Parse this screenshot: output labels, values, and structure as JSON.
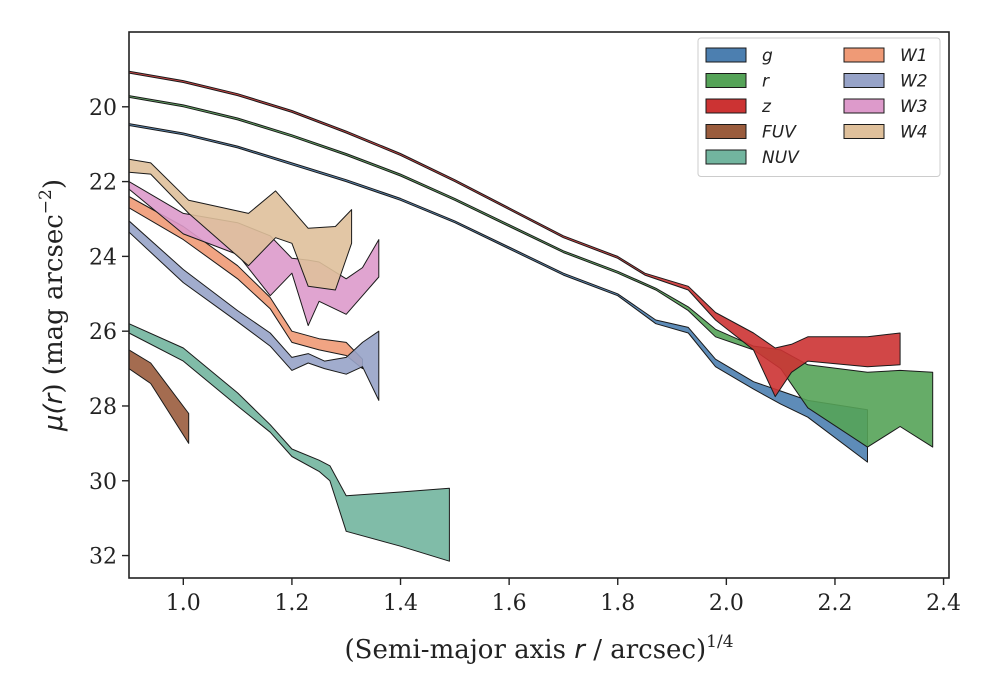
{
  "chart_data": {
    "type": "area",
    "xlabel": "(Semi-major axis r / arcsec)^{1/4}",
    "xlabel_parts": {
      "prefix": "(Semi-major axis ",
      "var": "r",
      "mid": " / arcsec)",
      "sup": "1/4"
    },
    "ylabel": "μ(r) (mag arcsec^{−2})",
    "ylabel_parts": {
      "mu": "μ(",
      "var": "r",
      "close": ") (mag arcsec",
      "sup": "−2",
      "end": ")"
    },
    "xlim": [
      0.9,
      2.41
    ],
    "ylim": [
      32.6,
      18.0
    ],
    "y_inverted": true,
    "xticks": [
      "1.0",
      "1.2",
      "1.4",
      "1.6",
      "1.8",
      "2.0",
      "2.2",
      "2.4"
    ],
    "yticks": [
      "20",
      "22",
      "24",
      "26",
      "28",
      "30",
      "32"
    ],
    "legend_position": "upper right",
    "legend_columns": 2,
    "series": [
      {
        "name": "g",
        "color": "#4c7fb0",
        "upper": [
          [
            0.9,
            20.45
          ],
          [
            1.0,
            20.7
          ],
          [
            1.1,
            21.05
          ],
          [
            1.2,
            21.5
          ],
          [
            1.3,
            21.95
          ],
          [
            1.4,
            22.45
          ],
          [
            1.5,
            23.05
          ],
          [
            1.6,
            23.75
          ],
          [
            1.7,
            24.45
          ],
          [
            1.8,
            25.0
          ],
          [
            1.87,
            25.7
          ],
          [
            1.93,
            25.9
          ],
          [
            1.98,
            26.75
          ],
          [
            2.05,
            27.35
          ],
          [
            2.1,
            27.6
          ],
          [
            2.15,
            27.85
          ],
          [
            2.26,
            28.1
          ]
        ],
        "lower": [
          [
            0.9,
            20.5
          ],
          [
            1.0,
            20.75
          ],
          [
            1.1,
            21.1
          ],
          [
            1.2,
            21.55
          ],
          [
            1.3,
            22.0
          ],
          [
            1.4,
            22.5
          ],
          [
            1.5,
            23.1
          ],
          [
            1.6,
            23.8
          ],
          [
            1.7,
            24.5
          ],
          [
            1.8,
            25.05
          ],
          [
            1.87,
            25.8
          ],
          [
            1.93,
            26.05
          ],
          [
            1.98,
            26.95
          ],
          [
            2.05,
            27.55
          ],
          [
            2.1,
            27.95
          ],
          [
            2.15,
            28.3
          ],
          [
            2.26,
            29.5
          ]
        ]
      },
      {
        "name": "r",
        "color": "#55a358",
        "upper": [
          [
            0.9,
            19.7
          ],
          [
            1.0,
            19.95
          ],
          [
            1.1,
            20.3
          ],
          [
            1.2,
            20.75
          ],
          [
            1.3,
            21.25
          ],
          [
            1.4,
            21.8
          ],
          [
            1.5,
            22.45
          ],
          [
            1.6,
            23.15
          ],
          [
            1.7,
            23.85
          ],
          [
            1.8,
            24.4
          ],
          [
            1.87,
            24.85
          ],
          [
            1.93,
            25.35
          ],
          [
            1.98,
            25.95
          ],
          [
            2.05,
            26.4
          ],
          [
            2.1,
            26.5
          ],
          [
            2.15,
            26.9
          ],
          [
            2.26,
            27.1
          ],
          [
            2.32,
            27.05
          ],
          [
            2.38,
            27.1
          ]
        ],
        "lower": [
          [
            0.9,
            19.75
          ],
          [
            1.0,
            20.0
          ],
          [
            1.1,
            20.35
          ],
          [
            1.2,
            20.8
          ],
          [
            1.3,
            21.3
          ],
          [
            1.4,
            21.85
          ],
          [
            1.5,
            22.5
          ],
          [
            1.6,
            23.2
          ],
          [
            1.7,
            23.9
          ],
          [
            1.8,
            24.45
          ],
          [
            1.87,
            24.9
          ],
          [
            1.93,
            25.45
          ],
          [
            1.98,
            26.15
          ],
          [
            2.05,
            26.5
          ],
          [
            2.1,
            27.0
          ],
          [
            2.15,
            28.05
          ],
          [
            2.26,
            29.1
          ],
          [
            2.32,
            28.55
          ],
          [
            2.38,
            29.1
          ]
        ]
      },
      {
        "name": "z",
        "color": "#cc3333",
        "upper": [
          [
            0.9,
            19.05
          ],
          [
            1.0,
            19.3
          ],
          [
            1.1,
            19.65
          ],
          [
            1.2,
            20.1
          ],
          [
            1.3,
            20.65
          ],
          [
            1.4,
            21.25
          ],
          [
            1.5,
            21.95
          ],
          [
            1.6,
            22.7
          ],
          [
            1.7,
            23.45
          ],
          [
            1.8,
            24.0
          ],
          [
            1.85,
            24.45
          ],
          [
            1.93,
            24.8
          ],
          [
            1.98,
            25.5
          ],
          [
            2.05,
            26.05
          ],
          [
            2.09,
            26.45
          ],
          [
            2.12,
            26.35
          ],
          [
            2.15,
            26.15
          ],
          [
            2.26,
            26.15
          ],
          [
            2.32,
            26.05
          ]
        ],
        "lower": [
          [
            0.9,
            19.1
          ],
          [
            1.0,
            19.35
          ],
          [
            1.1,
            19.7
          ],
          [
            1.2,
            20.15
          ],
          [
            1.3,
            20.7
          ],
          [
            1.4,
            21.3
          ],
          [
            1.5,
            22.0
          ],
          [
            1.6,
            22.75
          ],
          [
            1.7,
            23.5
          ],
          [
            1.8,
            24.05
          ],
          [
            1.85,
            24.5
          ],
          [
            1.93,
            24.9
          ],
          [
            1.98,
            25.7
          ],
          [
            2.05,
            26.5
          ],
          [
            2.09,
            27.75
          ],
          [
            2.12,
            27.1
          ],
          [
            2.15,
            26.8
          ],
          [
            2.26,
            26.95
          ],
          [
            2.32,
            26.9
          ]
        ]
      },
      {
        "name": "FUV",
        "color": "#9a5c3d",
        "upper": [
          [
            0.9,
            26.5
          ],
          [
            0.94,
            26.85
          ],
          [
            1.01,
            28.2
          ]
        ],
        "lower": [
          [
            0.9,
            27.0
          ],
          [
            0.94,
            27.4
          ],
          [
            1.01,
            29.0
          ]
        ]
      },
      {
        "name": "NUV",
        "color": "#72b59f",
        "upper": [
          [
            0.9,
            25.8
          ],
          [
            1.0,
            26.45
          ],
          [
            1.1,
            27.65
          ],
          [
            1.16,
            28.5
          ],
          [
            1.2,
            29.15
          ],
          [
            1.25,
            29.45
          ],
          [
            1.27,
            29.6
          ],
          [
            1.3,
            30.4
          ],
          [
            1.4,
            30.3
          ],
          [
            1.49,
            30.2
          ]
        ],
        "lower": [
          [
            0.9,
            26.05
          ],
          [
            1.0,
            26.8
          ],
          [
            1.1,
            28.0
          ],
          [
            1.16,
            28.7
          ],
          [
            1.2,
            29.35
          ],
          [
            1.25,
            29.75
          ],
          [
            1.27,
            30.0
          ],
          [
            1.3,
            31.35
          ],
          [
            1.4,
            31.75
          ],
          [
            1.49,
            32.15
          ]
        ]
      },
      {
        "name": "W1",
        "color": "#ef9a76",
        "upper": [
          [
            0.9,
            22.4
          ],
          [
            1.0,
            23.2
          ],
          [
            1.1,
            24.25
          ],
          [
            1.16,
            25.1
          ],
          [
            1.2,
            26.0
          ],
          [
            1.25,
            26.2
          ],
          [
            1.3,
            26.3
          ],
          [
            1.33,
            26.75
          ]
        ],
        "lower": [
          [
            0.9,
            22.7
          ],
          [
            1.0,
            23.55
          ],
          [
            1.1,
            24.6
          ],
          [
            1.16,
            25.4
          ],
          [
            1.2,
            26.3
          ],
          [
            1.25,
            26.5
          ],
          [
            1.3,
            26.65
          ],
          [
            1.33,
            27.0
          ]
        ]
      },
      {
        "name": "W2",
        "color": "#97a3c8",
        "upper": [
          [
            0.9,
            23.05
          ],
          [
            1.0,
            24.35
          ],
          [
            1.1,
            25.45
          ],
          [
            1.16,
            26.05
          ],
          [
            1.2,
            26.7
          ],
          [
            1.23,
            26.6
          ],
          [
            1.26,
            26.8
          ],
          [
            1.3,
            26.7
          ],
          [
            1.33,
            26.3
          ],
          [
            1.36,
            26.0
          ]
        ],
        "lower": [
          [
            0.9,
            23.35
          ],
          [
            1.0,
            24.7
          ],
          [
            1.1,
            25.75
          ],
          [
            1.16,
            26.4
          ],
          [
            1.2,
            27.05
          ],
          [
            1.23,
            26.85
          ],
          [
            1.26,
            27.0
          ],
          [
            1.3,
            27.15
          ],
          [
            1.33,
            26.95
          ],
          [
            1.36,
            27.85
          ]
        ]
      },
      {
        "name": "W3",
        "color": "#dd9acb",
        "upper": [
          [
            0.9,
            22.0
          ],
          [
            1.0,
            22.85
          ],
          [
            1.1,
            23.1
          ],
          [
            1.16,
            23.45
          ],
          [
            1.2,
            24.05
          ],
          [
            1.23,
            24.1
          ],
          [
            1.25,
            24.15
          ],
          [
            1.3,
            24.6
          ],
          [
            1.33,
            24.3
          ],
          [
            1.36,
            23.55
          ]
        ],
        "lower": [
          [
            0.9,
            22.2
          ],
          [
            1.0,
            23.4
          ],
          [
            1.1,
            23.95
          ],
          [
            1.16,
            25.05
          ],
          [
            1.2,
            24.45
          ],
          [
            1.23,
            25.85
          ],
          [
            1.25,
            25.2
          ],
          [
            1.3,
            25.55
          ],
          [
            1.33,
            25.05
          ],
          [
            1.36,
            24.55
          ]
        ]
      },
      {
        "name": "W4",
        "color": "#dfc09b",
        "upper": [
          [
            0.9,
            21.4
          ],
          [
            0.94,
            21.5
          ],
          [
            1.01,
            22.5
          ],
          [
            1.12,
            22.85
          ],
          [
            1.17,
            22.25
          ],
          [
            1.2,
            22.75
          ],
          [
            1.23,
            23.25
          ],
          [
            1.28,
            23.2
          ],
          [
            1.31,
            22.75
          ]
        ],
        "lower": [
          [
            0.9,
            21.75
          ],
          [
            0.94,
            21.8
          ],
          [
            1.01,
            22.85
          ],
          [
            1.12,
            24.25
          ],
          [
            1.17,
            23.5
          ],
          [
            1.2,
            23.65
          ],
          [
            1.23,
            24.8
          ],
          [
            1.28,
            24.9
          ],
          [
            1.31,
            23.65
          ]
        ]
      }
    ]
  }
}
